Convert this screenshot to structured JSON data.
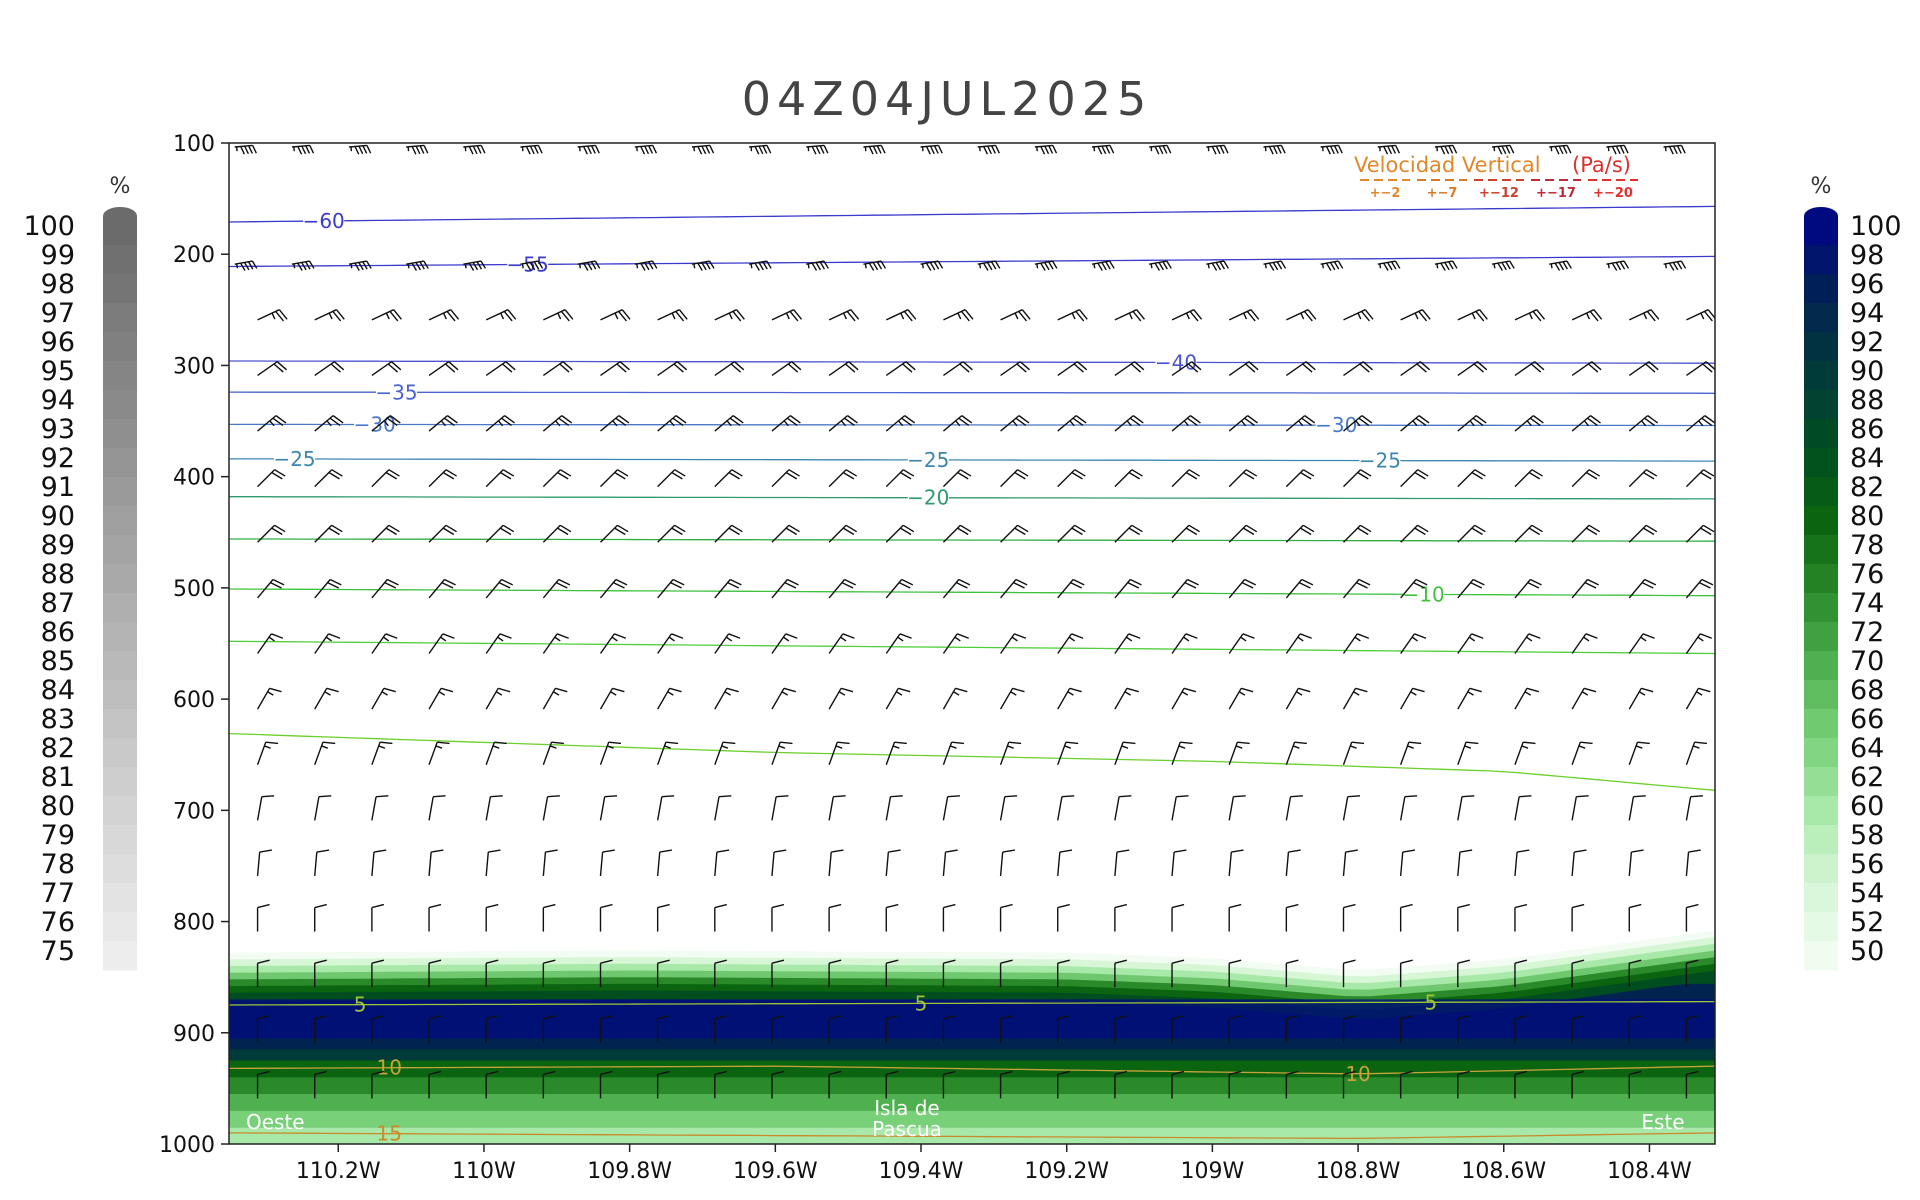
{
  "chart_data": {
    "type": "heatmap",
    "title": "04Z04JUL2025",
    "x_ticks": [
      "110.2W",
      "110W",
      "109.8W",
      "109.6W",
      "109.4W",
      "109.2W",
      "109W",
      "108.8W",
      "108.6W",
      "108.4W"
    ],
    "x_tick_values": [
      -110.2,
      -110.0,
      -109.8,
      -109.6,
      -109.4,
      -109.2,
      -109.0,
      -108.8,
      -108.6,
      -108.4
    ],
    "xlim": [
      -110.35,
      -108.31
    ],
    "y_ticks": [
      "100",
      "200",
      "300",
      "400",
      "500",
      "600",
      "700",
      "800",
      "900",
      "1000"
    ],
    "y_tick_values": [
      100,
      200,
      300,
      400,
      500,
      600,
      700,
      800,
      900,
      1000
    ],
    "ylim": [
      1000,
      100
    ],
    "humidity_left": {
      "unit": "%",
      "labels": [
        "100",
        "99",
        "98",
        "97",
        "96",
        "95",
        "94",
        "93",
        "92",
        "91",
        "90",
        "89",
        "88",
        "87",
        "86",
        "85",
        "84",
        "83",
        "82",
        "81",
        "80",
        "79",
        "78",
        "77",
        "76",
        "75"
      ],
      "colors": [
        "#6b6b6b",
        "#ededed"
      ]
    },
    "humidity_right": {
      "unit": "%",
      "labels": [
        "100",
        "98",
        "96",
        "94",
        "92",
        "90",
        "88",
        "86",
        "84",
        "82",
        "80",
        "78",
        "76",
        "74",
        "72",
        "70",
        "68",
        "66",
        "64",
        "62",
        "60",
        "58",
        "56",
        "54",
        "52",
        "50"
      ],
      "colors": [
        "#000a80",
        "#00244f",
        "#003b3a",
        "#004e20",
        "#0a6410",
        "#2a8a2a",
        "#4fb04f",
        "#78d078",
        "#a8e8a8",
        "#d6f6d6",
        "#effcef"
      ]
    },
    "humidity_layer": {
      "top_x": [
        -110.35,
        -109.8,
        -109.2,
        -109.0,
        -108.8,
        -108.6,
        -108.31
      ],
      "top_p": [
        840,
        838,
        840,
        845,
        856,
        846,
        820
      ],
      "core_top_p": 870,
      "core_bottom_p": 915,
      "surface_p": 1000
    },
    "temperature_contours": [
      {
        "level": -60,
        "label": "−60",
        "x": [
          -110.35,
          -108.31
        ],
        "p": [
          171,
          157
        ],
        "color": "#3a3acc",
        "label_x": [
          -110.22
        ]
      },
      {
        "level": -55,
        "label": "−55",
        "x": [
          -110.35,
          -108.31
        ],
        "p": [
          211,
          202
        ],
        "color": "#3a3acc",
        "label_x": [
          -109.94
        ]
      },
      {
        "level": -40,
        "label": "−40",
        "x": [
          -110.35,
          -108.31
        ],
        "p": [
          296,
          298
        ],
        "color": "#4a52d0",
        "label_x": [
          -109.05
        ]
      },
      {
        "level": -35,
        "label": "−35",
        "x": [
          -110.35,
          -108.31
        ],
        "p": [
          324,
          325
        ],
        "color": "#4a62d2",
        "label_x": [
          -110.12
        ]
      },
      {
        "level": -30,
        "label": "−30",
        "x": [
          -110.35,
          -108.31
        ],
        "p": [
          353,
          354
        ],
        "color": "#4a78c8",
        "label_x": [
          -110.15,
          -108.83
        ]
      },
      {
        "level": -25,
        "label": "−25",
        "x": [
          -110.35,
          -108.31
        ],
        "p": [
          384,
          386
        ],
        "color": "#3c86b0",
        "label_x": [
          -110.26,
          -109.39,
          -108.77
        ]
      },
      {
        "level": -20,
        "label": "−20",
        "x": [
          -110.35,
          -108.31
        ],
        "p": [
          418,
          420
        ],
        "color": "#2f9a6e",
        "label_x": [
          -109.39
        ]
      },
      {
        "level": -15,
        "label": "",
        "x": [
          -110.35,
          -108.31
        ],
        "p": [
          456,
          458
        ],
        "color": "#2fae46",
        "label_x": []
      },
      {
        "level": -10,
        "label": "−10",
        "x": [
          -110.35,
          -108.31
        ],
        "p": [
          501,
          507
        ],
        "color": "#3cc23c",
        "label_x": [
          -108.71
        ]
      },
      {
        "level": -5,
        "label": "",
        "x": [
          -110.35,
          -108.31
        ],
        "p": [
          548,
          559
        ],
        "color": "#4fcf3a",
        "label_x": []
      },
      {
        "level": 0,
        "label": "",
        "x": [
          -110.35,
          -109.6,
          -109.0,
          -108.6,
          -108.31
        ],
        "p": [
          631,
          648,
          656,
          665,
          682
        ],
        "color": "#6ad02a",
        "label_x": []
      },
      {
        "level": 5,
        "label": "5",
        "x": [
          -110.35,
          -108.31
        ],
        "p": [
          875,
          872
        ],
        "color": "#9ec43a",
        "label_x": [
          -110.17,
          -109.4,
          -108.7
        ]
      },
      {
        "level": 10,
        "label": "10",
        "x": [
          -110.35,
          -109.6,
          -108.8,
          -108.31
        ],
        "p": [
          932,
          930,
          937,
          930
        ],
        "color": "#c7a23a",
        "label_x": [
          -110.13,
          -108.8
        ]
      },
      {
        "level": 15,
        "label": "15",
        "x": [
          -110.35,
          -108.8,
          -108.31
        ],
        "p": [
          990,
          995,
          990
        ],
        "color": "#c98a2a",
        "label_x": [
          -110.13
        ]
      }
    ],
    "wind_barbs": {
      "levels_p": [
        100,
        200,
        250,
        300,
        350,
        400,
        450,
        500,
        550,
        600,
        650,
        700,
        750,
        800,
        850,
        900,
        950
      ],
      "speed_kt": [
        45,
        45,
        25,
        20,
        25,
        20,
        20,
        20,
        15,
        15,
        15,
        10,
        10,
        10,
        10,
        10,
        10
      ],
      "from_deg": [
        265,
        260,
        245,
        235,
        230,
        225,
        225,
        220,
        215,
        210,
        200,
        190,
        185,
        180,
        180,
        180,
        180
      ]
    },
    "vertical_velocity_legend": {
      "title": "Velocidad Vertical",
      "unit": "(Pa/s)",
      "levels": [
        "+−2",
        "+−7",
        "+−12",
        "+−17",
        "+−20"
      ],
      "colors": [
        "#e2882c",
        "#d67a2a",
        "#c8422e",
        "#c02a3a",
        "#e03030"
      ]
    },
    "annotations": {
      "west": "Oeste",
      "center_line1": "Isla de",
      "center_line2": "Pascua",
      "east": "Este"
    }
  }
}
